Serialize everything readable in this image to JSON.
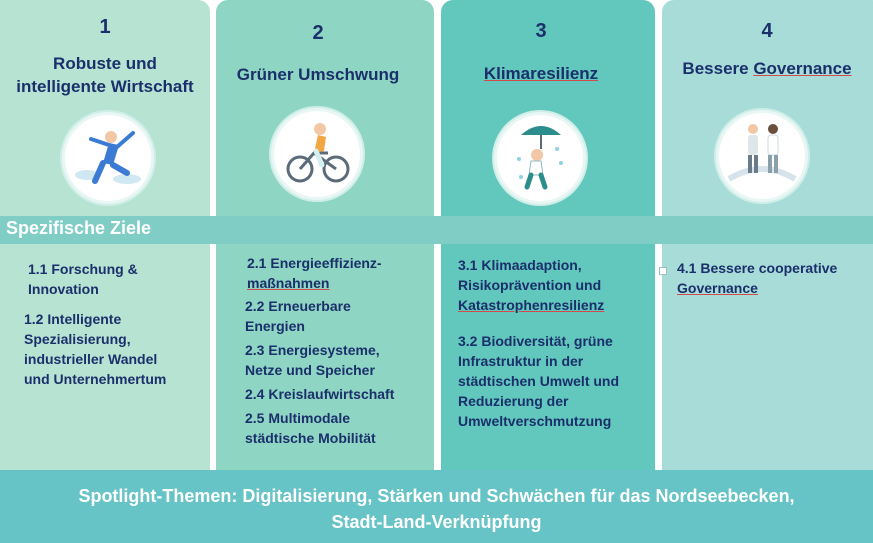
{
  "pillars": [
    {
      "number": "1",
      "title_line1": "Robuste und",
      "title_line2": "intelligente Wirtschaft",
      "icon": "person-jumping-icon"
    },
    {
      "number": "2",
      "title": "Grüner Umschwung",
      "icon": "person-cycling-icon"
    },
    {
      "number": "3",
      "title": "Klimaresilienz",
      "icon": "child-umbrella-icon"
    },
    {
      "number": "4",
      "title_pre": "Bessere ",
      "title_link": "Governance",
      "icon": "people-bridge-icon"
    }
  ],
  "band_label": "Spezifische Ziele",
  "goals": {
    "c1": [
      "1.1 Forschung &",
      "Innovation",
      "1.2 Intelligente",
      "Spezialisierung,",
      "industrieller Wandel",
      "und Unternehmertum"
    ],
    "c2": [
      "2.1 Energieeffizienz-",
      "maßnahmen",
      "2.2 Erneuerbare",
      "Energien",
      "2.3 Energiesysteme,",
      "Netze und Speicher",
      "2.4 Kreislaufwirtschaft",
      "2.5 Multimodale",
      "städtische Mobilität"
    ],
    "c3": [
      "3.1 Klimaadaption,",
      "Risikoprävention und",
      "Katastrophenresilienz",
      "3.2 Biodiversität, grüne",
      "Infrastruktur in der",
      "städtischen Umwelt und",
      "Reduzierung der",
      "Umweltverschmutzung"
    ],
    "c4": [
      "4.1 Bessere cooperative",
      "Governance"
    ]
  },
  "footer_line1": "Spotlight-Themen: Digitalisierung, Stärken und Schwächen für das Nordseebecken,",
  "footer_line2": "Stadt-Land-Verknüpfung"
}
